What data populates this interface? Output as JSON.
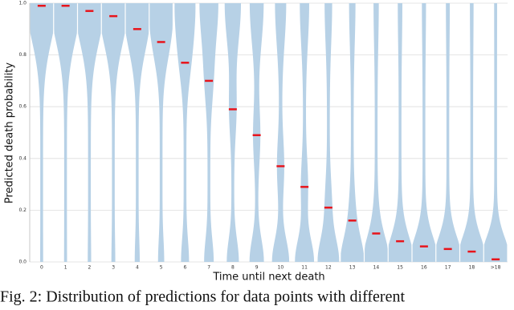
{
  "chart_data": {
    "type": "violin",
    "xlabel": "Time until next death",
    "ylabel": "Predicted death probability",
    "categories": [
      "0",
      "1",
      "2",
      "3",
      "4",
      "5",
      "6",
      "7",
      "8",
      "9",
      "10",
      "11",
      "12",
      "13",
      "14",
      "15",
      "16",
      "17",
      "18",
      ">18"
    ],
    "values": [
      0.99,
      0.99,
      0.97,
      0.95,
      0.9,
      0.85,
      0.77,
      0.7,
      0.59,
      0.49,
      0.37,
      0.29,
      0.21,
      0.16,
      0.11,
      0.08,
      0.06,
      0.05,
      0.04,
      0.01
    ],
    "color": "#b7d1e6",
    "median_color": "#e8141b",
    "ylim": [
      0,
      1
    ],
    "yticks": [
      {
        "value": 0,
        "label": "0.0"
      },
      0.2,
      0.4,
      0.6,
      0.8,
      {
        "value": 1,
        "label": "1.0"
      }
    ],
    "grid": true
  },
  "caption": "Fig. 2: Distribution of predictions for data points with different"
}
